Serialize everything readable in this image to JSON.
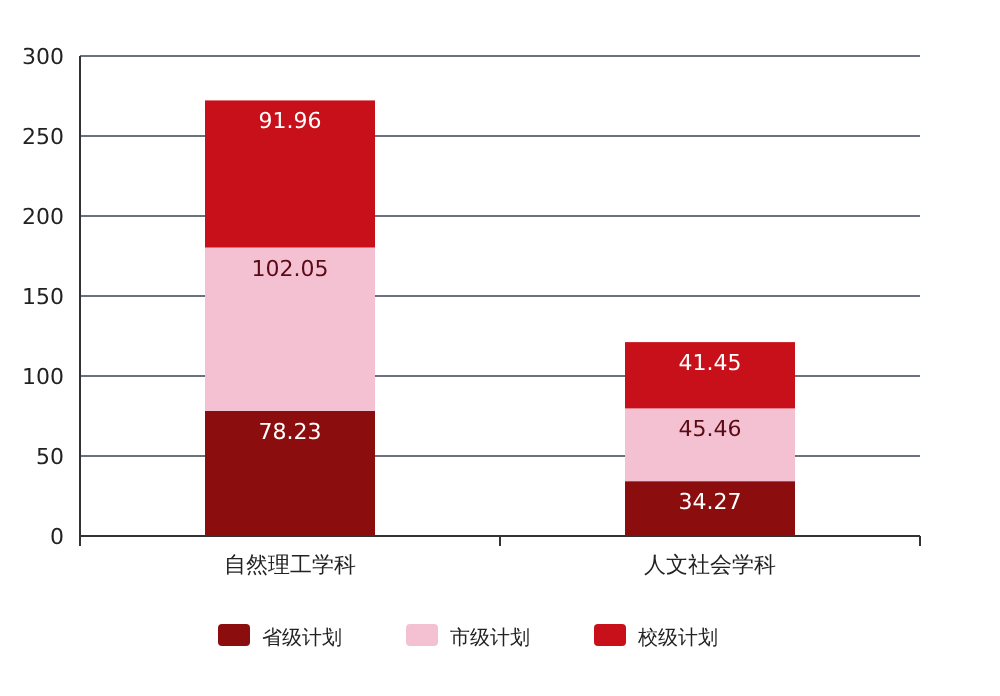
{
  "chart_data": {
    "type": "bar",
    "stacked": true,
    "categories": [
      "自然理工学科",
      "人文社会学科"
    ],
    "series": [
      {
        "name": "省级计划",
        "color": "#8b0d0d",
        "values": [
          78.23,
          34.27
        ]
      },
      {
        "name": "市级计划",
        "color": "#f4c1d3",
        "values": [
          102.05,
          45.46
        ]
      },
      {
        "name": "校级计划",
        "color": "#c8101a",
        "values": [
          91.96,
          41.45
        ]
      }
    ],
    "ylim": [
      0,
      300
    ],
    "yticks": [
      0,
      50,
      100,
      150,
      200,
      250,
      300
    ],
    "grid": "y",
    "legend": "bottom",
    "data_labels": true
  }
}
